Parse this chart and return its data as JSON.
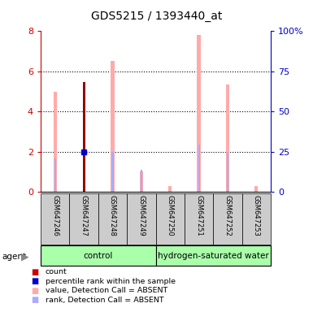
{
  "title": "GDS5215 / 1393440_at",
  "samples": [
    "GSM647246",
    "GSM647247",
    "GSM647248",
    "GSM647249",
    "GSM647250",
    "GSM647251",
    "GSM647252",
    "GSM647253"
  ],
  "count_values": [
    0,
    5.45,
    0,
    0,
    0,
    0,
    0,
    0
  ],
  "percentile_rank_values": [
    0,
    2.0,
    0,
    0,
    0,
    0,
    0,
    0
  ],
  "absent_value_values": [
    5.0,
    0,
    6.5,
    1.0,
    0.3,
    7.8,
    5.35,
    0.3
  ],
  "absent_rank_values": [
    1.65,
    0,
    2.0,
    1.1,
    0,
    2.35,
    2.0,
    0
  ],
  "left_ylim": [
    0,
    8
  ],
  "right_ylim": [
    0,
    100
  ],
  "left_yticks": [
    0,
    2,
    4,
    6,
    8
  ],
  "right_yticklabels": [
    "0",
    "25",
    "50",
    "75",
    "100%"
  ],
  "left_color": "#cc0000",
  "right_color": "#0000cc",
  "absent_value_color": "#ffaaaa",
  "absent_rank_color": "#aaaaff",
  "count_color": "#990000",
  "percentile_color": "#0000cc",
  "group_data": [
    {
      "name": "control",
      "start": 0,
      "end": 4
    },
    {
      "name": "hydrogen-saturated water",
      "start": 4,
      "end": 8
    }
  ],
  "legend_items": [
    {
      "label": "count",
      "color": "#cc0000"
    },
    {
      "label": "percentile rank within the sample",
      "color": "#0000cc"
    },
    {
      "label": "value, Detection Call = ABSENT",
      "color": "#ffaaaa"
    },
    {
      "label": "rank, Detection Call = ABSENT",
      "color": "#aaaaff"
    }
  ]
}
